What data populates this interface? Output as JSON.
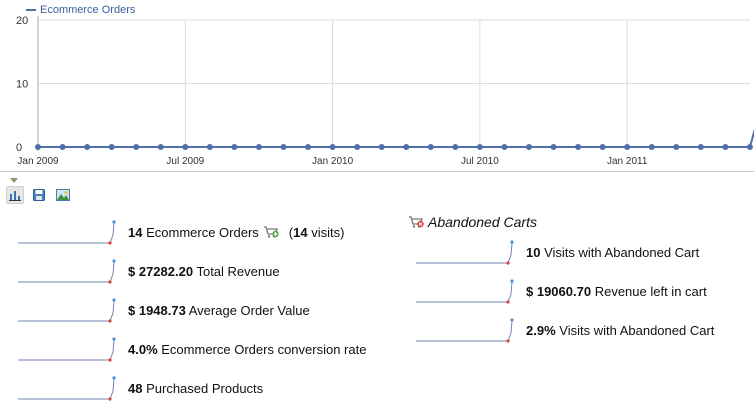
{
  "chart_data": {
    "type": "line",
    "series": [
      {
        "name": "Ecommerce Orders",
        "x": [
          "2009-01",
          "2009-02",
          "2009-03",
          "2009-04",
          "2009-05",
          "2009-06",
          "2009-07",
          "2009-08",
          "2009-09",
          "2009-10",
          "2009-11",
          "2009-12",
          "2010-01",
          "2010-02",
          "2010-03",
          "2010-04",
          "2010-05",
          "2010-06",
          "2010-07",
          "2010-08",
          "2010-09",
          "2010-10",
          "2010-11",
          "2010-12",
          "2011-01",
          "2011-02",
          "2011-03",
          "2011-04",
          "2011-05",
          "2011-06",
          "2011-07"
        ],
        "values": [
          0,
          0,
          0,
          0,
          0,
          0,
          0,
          0,
          0,
          0,
          0,
          0,
          0,
          0,
          0,
          0,
          0,
          0,
          0,
          0,
          0,
          0,
          0,
          0,
          0,
          0,
          0,
          0,
          0,
          0,
          14
        ]
      }
    ],
    "x_tick_labels": [
      "Jan 2009",
      "Jul 2009",
      "Jan 2010",
      "Jul 2010",
      "Jan 2011"
    ],
    "y_ticks": [
      "0",
      "10",
      "20"
    ],
    "ylim": [
      0,
      20
    ],
    "grid": true,
    "legend": "top-left",
    "line_color": "#4e6fa8",
    "title": "",
    "xlabel": "",
    "ylabel": ""
  },
  "legend": {
    "label": "Ecommerce Orders"
  },
  "toolbar": {
    "buttons": [
      {
        "icon": "bar-chart-icon",
        "active": true
      },
      {
        "icon": "save-icon",
        "active": false
      },
      {
        "icon": "image-icon",
        "active": false
      }
    ]
  },
  "metrics": {
    "orders": {
      "value": "14",
      "label": "Ecommerce Orders",
      "visits_open": "(",
      "visits_value": "14",
      "visits_label": "visits)"
    },
    "revenue": {
      "value": "$ 27282.20",
      "label": "Total Revenue"
    },
    "aov": {
      "value": "$ 1948.73",
      "label": "Average Order Value"
    },
    "conversion": {
      "value": "4.0%",
      "label": "Ecommerce Orders conversion rate"
    },
    "products": {
      "value": "48",
      "label": "Purchased Products"
    }
  },
  "abandoned": {
    "title": "Abandoned Carts",
    "visits": {
      "value": "10",
      "label": "Visits with Abandoned Cart"
    },
    "revenue_left": {
      "value": "$ 19060.70",
      "label": "Revenue left in cart"
    },
    "rate": {
      "value": "2.9%",
      "label": "Visits with Abandoned Cart"
    }
  },
  "colors": {
    "spark_line": "#6f86b3",
    "spark_end": "#4a90d9",
    "spark_start": "#e04040",
    "cart_icon": "#777777",
    "cart_add": "#4aa23a",
    "cart_remove": "#d83b2a"
  }
}
